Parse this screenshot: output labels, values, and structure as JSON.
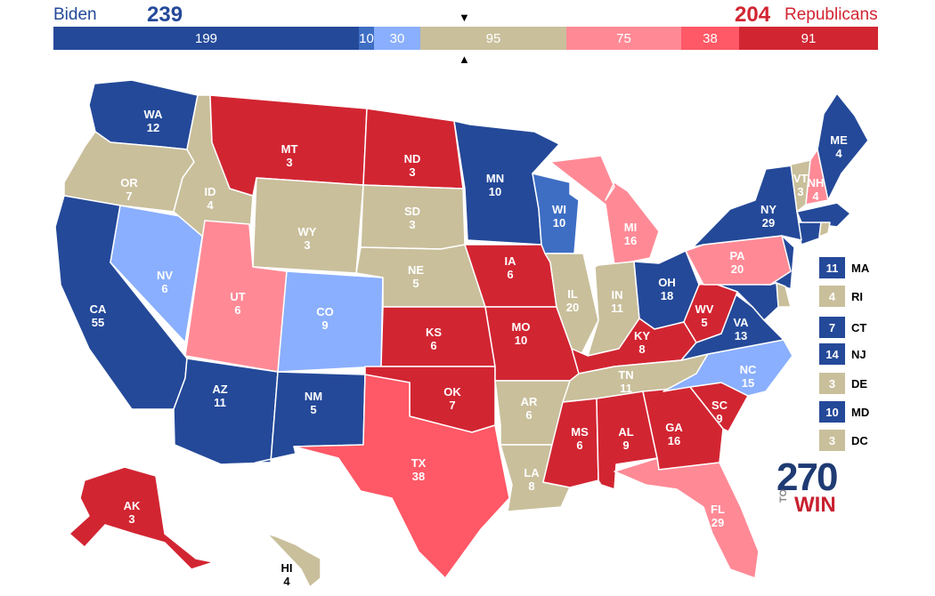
{
  "header": {
    "left_name": "Biden",
    "left_total": "239",
    "right_total": "204",
    "right_name": "Republicans"
  },
  "colors": {
    "safe_dem": "#244999",
    "likely_dem": "#3e6ec4",
    "lean_dem": "#8aaffe",
    "tossup": "#c9bf9b",
    "lean_rep": "#ff8a96",
    "likely_rep": "#ff5866",
    "safe_rep": "#d22532"
  },
  "bar": [
    {
      "label": "199",
      "value": 199,
      "rating": "safe_dem"
    },
    {
      "label": "10",
      "value": 10,
      "rating": "likely_dem"
    },
    {
      "label": "30",
      "value": 30,
      "rating": "lean_dem"
    },
    {
      "label": "95",
      "value": 95,
      "rating": "tossup"
    },
    {
      "label": "75",
      "value": 75,
      "rating": "lean_rep"
    },
    {
      "label": "38",
      "value": 38,
      "rating": "likely_rep"
    },
    {
      "label": "91",
      "value": 91,
      "rating": "safe_rep"
    }
  ],
  "states": [
    {
      "abbr": "WA",
      "ev": "12",
      "rating": "safe_dem"
    },
    {
      "abbr": "OR",
      "ev": "7",
      "rating": "tossup"
    },
    {
      "abbr": "CA",
      "ev": "55",
      "rating": "safe_dem"
    },
    {
      "abbr": "NV",
      "ev": "6",
      "rating": "lean_dem"
    },
    {
      "abbr": "ID",
      "ev": "4",
      "rating": "tossup"
    },
    {
      "abbr": "MT",
      "ev": "3",
      "rating": "safe_rep"
    },
    {
      "abbr": "WY",
      "ev": "3",
      "rating": "tossup"
    },
    {
      "abbr": "UT",
      "ev": "6",
      "rating": "lean_rep"
    },
    {
      "abbr": "CO",
      "ev": "9",
      "rating": "lean_dem"
    },
    {
      "abbr": "AZ",
      "ev": "11",
      "rating": "safe_dem"
    },
    {
      "abbr": "NM",
      "ev": "5",
      "rating": "safe_dem"
    },
    {
      "abbr": "ND",
      "ev": "3",
      "rating": "safe_rep"
    },
    {
      "abbr": "SD",
      "ev": "3",
      "rating": "tossup"
    },
    {
      "abbr": "NE",
      "ev": "5",
      "rating": "tossup"
    },
    {
      "abbr": "KS",
      "ev": "6",
      "rating": "safe_rep"
    },
    {
      "abbr": "OK",
      "ev": "7",
      "rating": "safe_rep"
    },
    {
      "abbr": "TX",
      "ev": "38",
      "rating": "likely_rep"
    },
    {
      "abbr": "MN",
      "ev": "10",
      "rating": "safe_dem"
    },
    {
      "abbr": "IA",
      "ev": "6",
      "rating": "safe_rep"
    },
    {
      "abbr": "MO",
      "ev": "10",
      "rating": "safe_rep"
    },
    {
      "abbr": "AR",
      "ev": "6",
      "rating": "tossup"
    },
    {
      "abbr": "LA",
      "ev": "8",
      "rating": "tossup"
    },
    {
      "abbr": "WI",
      "ev": "10",
      "rating": "likely_dem"
    },
    {
      "abbr": "IL",
      "ev": "20",
      "rating": "tossup"
    },
    {
      "abbr": "MI",
      "ev": "16",
      "rating": "lean_rep"
    },
    {
      "abbr": "IN",
      "ev": "11",
      "rating": "tossup"
    },
    {
      "abbr": "OH",
      "ev": "18",
      "rating": "safe_dem"
    },
    {
      "abbr": "KY",
      "ev": "8",
      "rating": "safe_rep"
    },
    {
      "abbr": "TN",
      "ev": "11",
      "rating": "tossup"
    },
    {
      "abbr": "MS",
      "ev": "6",
      "rating": "safe_rep"
    },
    {
      "abbr": "AL",
      "ev": "9",
      "rating": "safe_rep"
    },
    {
      "abbr": "GA",
      "ev": "16",
      "rating": "safe_rep"
    },
    {
      "abbr": "FL",
      "ev": "29",
      "rating": "lean_rep"
    },
    {
      "abbr": "SC",
      "ev": "9",
      "rating": "safe_rep"
    },
    {
      "abbr": "NC",
      "ev": "15",
      "rating": "lean_dem"
    },
    {
      "abbr": "VA",
      "ev": "13",
      "rating": "safe_dem"
    },
    {
      "abbr": "WV",
      "ev": "5",
      "rating": "safe_rep"
    },
    {
      "abbr": "PA",
      "ev": "20",
      "rating": "lean_rep"
    },
    {
      "abbr": "NY",
      "ev": "29",
      "rating": "safe_dem"
    },
    {
      "abbr": "VT",
      "ev": "3",
      "rating": "tossup"
    },
    {
      "abbr": "NH",
      "ev": "4",
      "rating": "lean_rep"
    },
    {
      "abbr": "ME",
      "ev": "4",
      "rating": "safe_dem"
    },
    {
      "abbr": "AK",
      "ev": "3",
      "rating": "safe_rep"
    },
    {
      "abbr": "HI",
      "ev": "4",
      "rating": "tossup"
    }
  ],
  "legend": [
    {
      "ev": "11",
      "abbr": "MA",
      "rating": "safe_dem"
    },
    {
      "ev": "4",
      "abbr": "RI",
      "rating": "tossup"
    },
    {
      "ev": "7",
      "abbr": "CT",
      "rating": "safe_dem"
    },
    {
      "ev": "14",
      "abbr": "NJ",
      "rating": "safe_dem"
    },
    {
      "ev": "3",
      "abbr": "DE",
      "rating": "tossup"
    },
    {
      "ev": "10",
      "abbr": "MD",
      "rating": "safe_dem"
    },
    {
      "ev": "3",
      "abbr": "DC",
      "rating": "tossup"
    }
  ],
  "logo": {
    "number": "270",
    "to": "TO",
    "win": "WIN"
  }
}
